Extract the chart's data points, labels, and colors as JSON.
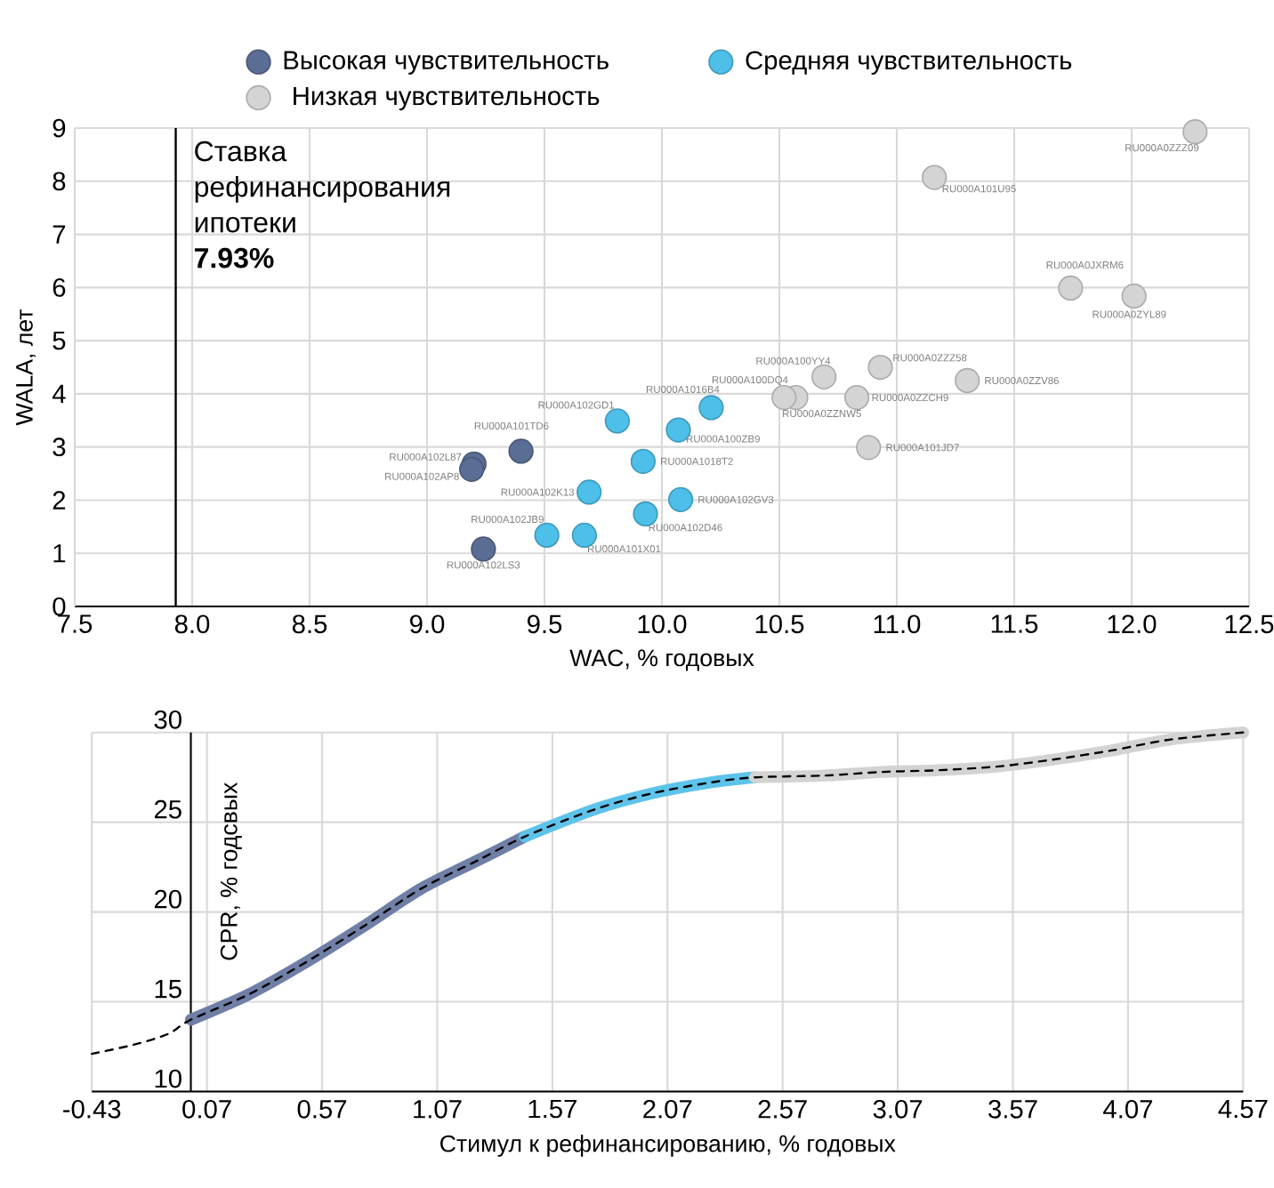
{
  "chart_data": [
    {
      "type": "scatter",
      "xlabel": "WAC, % годовых",
      "ylabel": "WALA, лет",
      "xlim": [
        7.5,
        12.5
      ],
      "ylim": [
        0,
        9
      ],
      "xticks": [
        7.5,
        {
          "value": 8,
          "label": "8.0"
        },
        8.5,
        {
          "value": 9,
          "label": "9.0"
        },
        9.5,
        {
          "value": 10,
          "label": "10.0"
        },
        10.5,
        {
          "value": 11,
          "label": "11.0"
        },
        11.5,
        {
          "value": 12,
          "label": "12.0"
        },
        12.5
      ],
      "yticks": [
        0,
        1,
        2,
        3,
        4,
        5,
        6,
        7,
        8,
        9
      ],
      "grid": true,
      "legend": "top",
      "marker": "circle",
      "series": [
        {
          "name": "Высокая чувствительность",
          "color": "#5a6d94",
          "x": [
            9.4,
            9.2,
            9.19,
            9.24
          ],
          "values": [
            2.92,
            2.68,
            2.58,
            1.08
          ]
        },
        {
          "name": "Средняя чувствительность",
          "color": "#4dbfe8",
          "x": [
            9.81,
            10.21,
            10.07,
            9.92,
            9.69,
            10.08,
            9.93,
            9.51,
            9.67
          ],
          "values": [
            3.49,
            3.74,
            3.32,
            2.73,
            2.15,
            2.01,
            1.74,
            1.34,
            1.34
          ]
        },
        {
          "name": "Низкая чувствительность",
          "color": "#d4d4d4",
          "x": [
            12.27,
            11.16,
            11.74,
            12.01,
            10.69,
            10.93,
            10.57,
            10.52,
            10.83,
            11.3,
            10.88
          ],
          "values": [
            8.93,
            8.07,
            5.99,
            5.84,
            4.32,
            4.5,
            3.93,
            3.93,
            3.93,
            4.25,
            2.99
          ]
        }
      ],
      "ref_lines": [
        {
          "axis": "x",
          "value": 7.93,
          "label": "Ставка рефинансирования ипотеки **7.93%**",
          "color": "#000000"
        }
      ],
      "annotations": [
        {
          "text": "RU000A101TD6",
          "x": 9.4,
          "y": 2.92
        },
        {
          "text": "RU000A102L87",
          "x": 9.2,
          "y": 2.68
        },
        {
          "text": "RU000A102AP8",
          "x": 9.19,
          "y": 2.58
        },
        {
          "text": "RU000A102LS3",
          "x": 9.24,
          "y": 1.08
        },
        {
          "text": "RU000A102GD1",
          "x": 9.81,
          "y": 3.49
        },
        {
          "text": "RU000A1016B4",
          "x": 10.21,
          "y": 3.74
        },
        {
          "text": "RU000A100ZB9",
          "x": 10.07,
          "y": 3.32
        },
        {
          "text": "RU000A1018T2",
          "x": 9.92,
          "y": 2.73
        },
        {
          "text": "RU000A102K13",
          "x": 9.69,
          "y": 2.15
        },
        {
          "text": "RU000A102GV3",
          "x": 10.08,
          "y": 2.01
        },
        {
          "text": "RU000A102D46",
          "x": 9.93,
          "y": 1.74
        },
        {
          "text": "RU000A102JB9",
          "x": 9.51,
          "y": 1.34
        },
        {
          "text": "RU000A101X01",
          "x": 9.67,
          "y": 1.34
        },
        {
          "text": "RU000A0ZZZ09",
          "x": 12.27,
          "y": 8.93
        },
        {
          "text": "RU000A101U95",
          "x": 11.16,
          "y": 8.07
        },
        {
          "text": "RU000A0JXRM6",
          "x": 11.74,
          "y": 5.99
        },
        {
          "text": "RU000A0ZYL89",
          "x": 12.01,
          "y": 5.84
        },
        {
          "text": "RU000A100YY4",
          "x": 10.69,
          "y": 4.32
        },
        {
          "text": "RU000A0ZZZ58",
          "x": 10.93,
          "y": 4.5
        },
        {
          "text": "RU000A100DQ4",
          "x": 10.57,
          "y": 3.93
        },
        {
          "text": "RU000A0ZZNW5",
          "x": 10.52,
          "y": 3.93
        },
        {
          "text": "RU000A0ZZCH9",
          "x": 10.83,
          "y": 3.93
        },
        {
          "text": "RU000A0ZZV86",
          "x": 11.3,
          "y": 4.25
        },
        {
          "text": "RU000A101JD7",
          "x": 10.88,
          "y": 2.99
        }
      ]
    },
    {
      "type": "line",
      "xlabel": "Стимул к рефинансированию, % годовых",
      "ylabel": "CPR, % годсвых",
      "xlim": [
        -0.43,
        4.57
      ],
      "ylim": [
        10,
        30
      ],
      "xticks": [
        -0.43,
        0.07,
        0.57,
        1.07,
        1.57,
        2.07,
        2.57,
        3.07,
        3.57,
        4.07,
        4.57
      ],
      "yticks": [
        10,
        15,
        20,
        25,
        30
      ],
      "grid": true,
      "series": [
        {
          "color": "#6f7fa6",
          "line_style": "solid",
          "x": [
            0,
            0.25,
            0.5,
            0.75,
            1.0,
            1.25,
            1.45
          ],
          "values": [
            14.0,
            15.4,
            17.2,
            19.2,
            21.3,
            22.9,
            24.2
          ]
        },
        {
          "color": "#5ec3ea",
          "line_style": "solid",
          "x": [
            1.45,
            1.75,
            2.0,
            2.25,
            2.45
          ],
          "values": [
            24.2,
            25.7,
            26.6,
            27.2,
            27.5
          ]
        },
        {
          "color": "#d3d3d3",
          "line_style": "solid",
          "x": [
            2.45,
            2.75,
            3.0,
            3.25,
            3.5,
            3.75,
            4.0,
            4.25,
            4.57
          ],
          "values": [
            27.5,
            27.6,
            27.8,
            27.9,
            28.1,
            28.5,
            29.0,
            29.6,
            30.0
          ]
        },
        {
          "color": "#000000",
          "line_style": "dashed",
          "x": [
            -0.43,
            -0.25,
            -0.1,
            0,
            0.25,
            0.5,
            0.75,
            1.0,
            1.25,
            1.45,
            1.75,
            2.0,
            2.25,
            2.45,
            2.75,
            3.0,
            3.25,
            3.5,
            3.75,
            4.0,
            4.25,
            4.57
          ],
          "values": [
            12.1,
            12.6,
            13.2,
            14.0,
            15.4,
            17.2,
            19.2,
            21.3,
            22.9,
            24.2,
            25.7,
            26.6,
            27.2,
            27.5,
            27.6,
            27.8,
            27.9,
            28.1,
            28.5,
            29.0,
            29.6,
            30.0
          ]
        }
      ]
    }
  ]
}
